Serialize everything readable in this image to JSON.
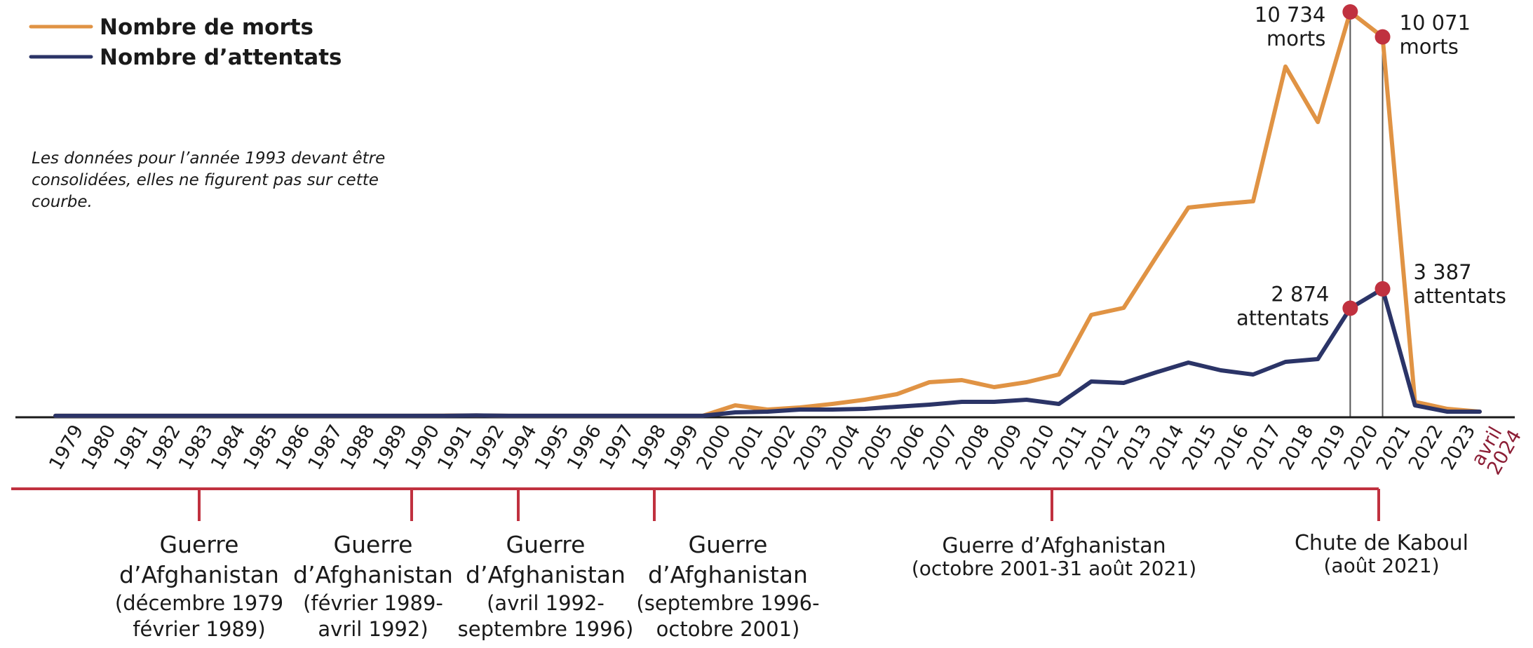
{
  "chart_data": {
    "type": "line",
    "title": "",
    "xlabel": "",
    "ylabel": "",
    "grid": false,
    "legend_position": "top-left",
    "categories": [
      "1979",
      "1980",
      "1981",
      "1982",
      "1983",
      "1984",
      "1985",
      "1986",
      "1987",
      "1988",
      "1989",
      "1990",
      "1991",
      "1992",
      "1994",
      "1995",
      "1996",
      "1997",
      "1998",
      "1999",
      "2000",
      "2001",
      "2002",
      "2003",
      "2004",
      "2005",
      "2006",
      "2007",
      "2008",
      "2009",
      "2010",
      "2011",
      "2012",
      "2013",
      "2014",
      "2015",
      "2016",
      "2017",
      "2018",
      "2019",
      "2020",
      "2021",
      "2022",
      "2023",
      "avril 2024"
    ],
    "last_category_lines": [
      "avril",
      "2024"
    ],
    "ylim": [
      0,
      11000
    ],
    "series": [
      {
        "name": "Nombre de morts",
        "color": "#e09344",
        "values": [
          20,
          20,
          20,
          20,
          20,
          20,
          20,
          20,
          20,
          20,
          20,
          20,
          25,
          30,
          20,
          20,
          20,
          20,
          20,
          20,
          20,
          298,
          186,
          242,
          335,
          446,
          595,
          912,
          967,
          781,
          912,
          1116,
          2698,
          2884,
          4224,
          5544,
          5637,
          5712,
          9284,
          7814,
          10734,
          10071,
          391,
          205,
          130
        ]
      },
      {
        "name": "Nombre d’attentats",
        "color": "#2b3467",
        "values": [
          20,
          20,
          20,
          20,
          20,
          20,
          20,
          20,
          20,
          20,
          20,
          20,
          20,
          30,
          20,
          20,
          20,
          20,
          20,
          20,
          20,
          112,
          130,
          186,
          186,
          205,
          260,
          316,
          391,
          391,
          446,
          335,
          930,
          893,
          1172,
          1433,
          1228,
          1116,
          1451,
          1526,
          2874,
          3387,
          298,
          130,
          130
        ]
      }
    ],
    "highlights": [
      {
        "series": 0,
        "category": "2020",
        "value_label": "10 734",
        "unit_label": "morts"
      },
      {
        "series": 0,
        "category": "2021",
        "value_label": "10 071",
        "unit_label": "morts"
      },
      {
        "series": 1,
        "category": "2020",
        "value_label": "2 874",
        "unit_label": "attentats"
      },
      {
        "series": 1,
        "category": "2021",
        "value_label": "3 387",
        "unit_label": "attentats"
      }
    ],
    "note_lines": [
      "Les données pour l’année 1993 devant être",
      "consolidées, elles ne figurent pas sur cette",
      "courbe."
    ],
    "periods": [
      {
        "lines_title": [
          "Guerre",
          "d’Afghanistan"
        ],
        "lines_sub": [
          "(décembre 1979",
          "février 1989)"
        ]
      },
      {
        "lines_title": [
          "Guerre",
          "d’Afghanistan"
        ],
        "lines_sub": [
          "(février 1989-",
          "avril 1992)"
        ]
      },
      {
        "lines_title": [
          "Guerre",
          "d’Afghanistan"
        ],
        "lines_sub": [
          "(avril 1992-",
          "septembre 1996)"
        ]
      },
      {
        "lines_title": [
          "Guerre",
          "d’Afghanistan"
        ],
        "lines_sub": [
          "(septembre 1996-",
          "octobre 2001)"
        ]
      },
      {
        "lines_title": [
          "Guerre d’Afghanistan"
        ],
        "lines_sub": [
          "(octobre 2001-31 août 2021)"
        ]
      },
      {
        "lines_title": [
          "Chute de Kaboul"
        ],
        "lines_sub": [
          "(août 2021)"
        ]
      }
    ],
    "colors": {
      "marker": "#c0313f",
      "timeline": "#c0313f",
      "axis": "#1a1a1a",
      "guide": "#555555",
      "last_tick": "#8c1d35"
    }
  }
}
